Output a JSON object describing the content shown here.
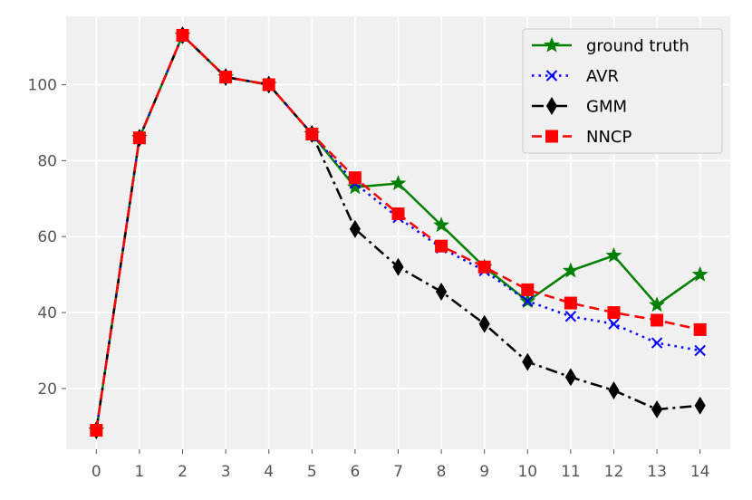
{
  "chart_data": {
    "type": "line",
    "title": "",
    "xlabel": "",
    "ylabel": "",
    "x": [
      0,
      1,
      2,
      3,
      4,
      5,
      6,
      7,
      8,
      9,
      10,
      11,
      12,
      13,
      14
    ],
    "xlim": [
      -0.7,
      14.7
    ],
    "ylim": [
      4,
      118
    ],
    "x_ticks": [
      "0",
      "1",
      "2",
      "3",
      "4",
      "5",
      "6",
      "7",
      "8",
      "9",
      "10",
      "11",
      "12",
      "13",
      "14"
    ],
    "y_ticks": [
      20,
      40,
      60,
      80,
      100
    ],
    "grid": true,
    "legend_position": "top-right",
    "series": [
      {
        "name": "ground truth",
        "color": "#008000",
        "line_style": "solid",
        "marker": "star",
        "values": [
          9,
          86,
          113,
          102,
          100,
          87,
          73,
          74,
          63,
          52,
          43,
          51,
          55,
          42,
          50
        ]
      },
      {
        "name": "AVR",
        "color": "#0000ff",
        "line_style": "dotted",
        "marker": "x",
        "values": [
          9,
          86,
          113,
          102,
          100,
          87,
          74,
          65,
          57,
          51,
          43,
          39,
          37,
          32,
          30
        ]
      },
      {
        "name": "GMM",
        "color": "#000000",
        "line_style": "dashdot",
        "marker": "thin_diamond",
        "values": [
          9,
          86,
          113,
          102,
          100,
          87,
          62,
          52,
          45.5,
          37,
          27,
          23,
          19.5,
          14.5,
          15.5
        ]
      },
      {
        "name": "NNCP",
        "color": "#ff0000",
        "line_style": "dashed",
        "marker": "square",
        "values": [
          9,
          86,
          113,
          102,
          100,
          87,
          75.5,
          66,
          57.5,
          52,
          46,
          42.5,
          40,
          38,
          35.5
        ]
      }
    ]
  }
}
